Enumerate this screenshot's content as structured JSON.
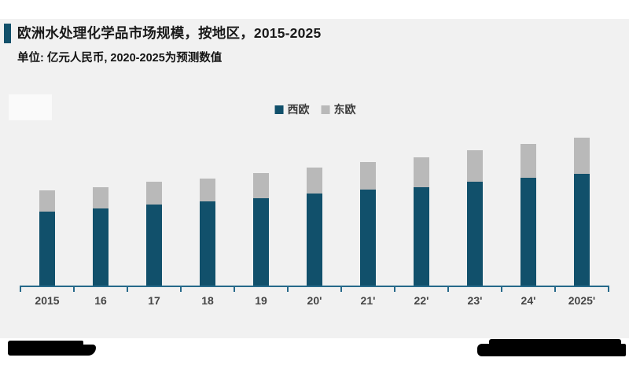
{
  "chart_data": {
    "type": "bar",
    "stacked": true,
    "title": "欧洲水处理化学品市场规模，按地区，2015-2025",
    "subtitle": "单位: 亿元人民币, 2020-2025为预测数值",
    "categories": [
      "2015",
      "16",
      "17",
      "18",
      "19",
      "20'",
      "21'",
      "22'",
      "23'",
      "24'",
      "2025'"
    ],
    "series": [
      {
        "name": "西欧",
        "color": "#11506b",
        "values": [
          94,
          98,
          103,
          107,
          111,
          117,
          122,
          125,
          132,
          137,
          142
        ]
      },
      {
        "name": "东欧",
        "color": "#b9b9b9",
        "values": [
          27,
          27,
          29,
          29,
          32,
          33,
          35,
          38,
          40,
          43,
          46
        ]
      }
    ],
    "ylabel": "亿元人民币",
    "xlabel": "",
    "value_axis_shown": false,
    "value_note": "图上无数值坐标轴与数据标签，数值为按条形高度估算的相对值",
    "ylim": [
      0,
      200
    ],
    "grid": false,
    "legend_position": "top-center",
    "axis_color": "#26698a"
  },
  "misc": {
    "panel_background": "#f1f1f1",
    "accent_bar_color": "#12506a",
    "redactions": [
      "bottom-left-logo",
      "bottom-right-source-credit"
    ]
  }
}
